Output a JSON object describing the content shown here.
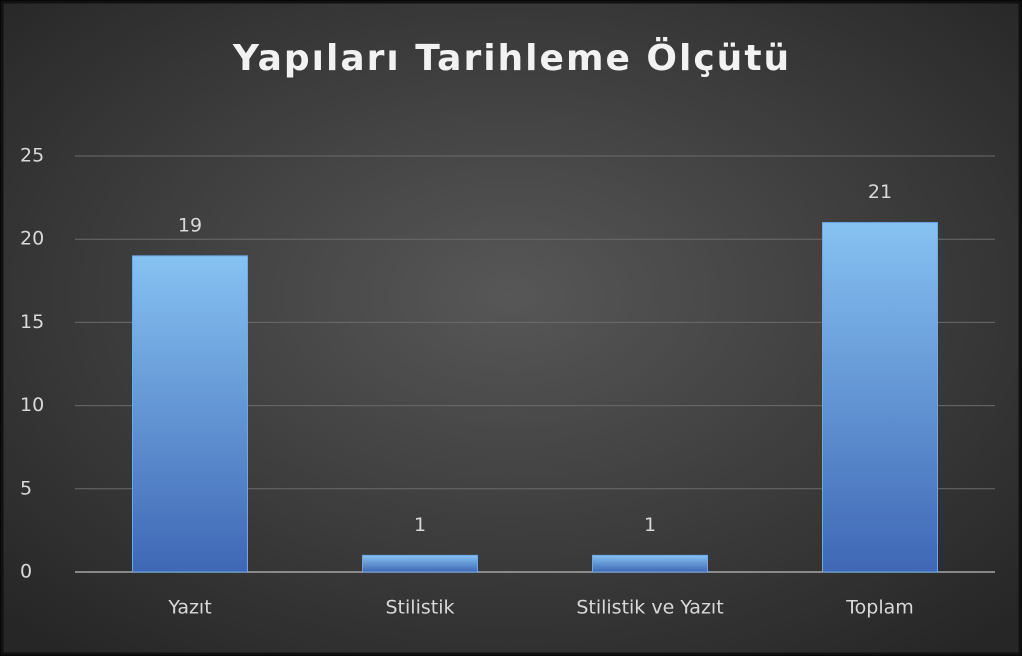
{
  "chart_data": {
    "type": "bar",
    "title": "Yapıları Tarihleme Ölçütü",
    "categories": [
      "Yazıt",
      "Stilistik",
      "Stilistik ve Yazıt",
      "Toplam"
    ],
    "values": [
      19,
      1,
      1,
      21
    ],
    "color": "#6fa8e6",
    "ylim": [
      0,
      25
    ],
    "yticks": [
      0,
      5,
      10,
      15,
      20,
      25
    ],
    "grid": true,
    "data_labels": true
  }
}
